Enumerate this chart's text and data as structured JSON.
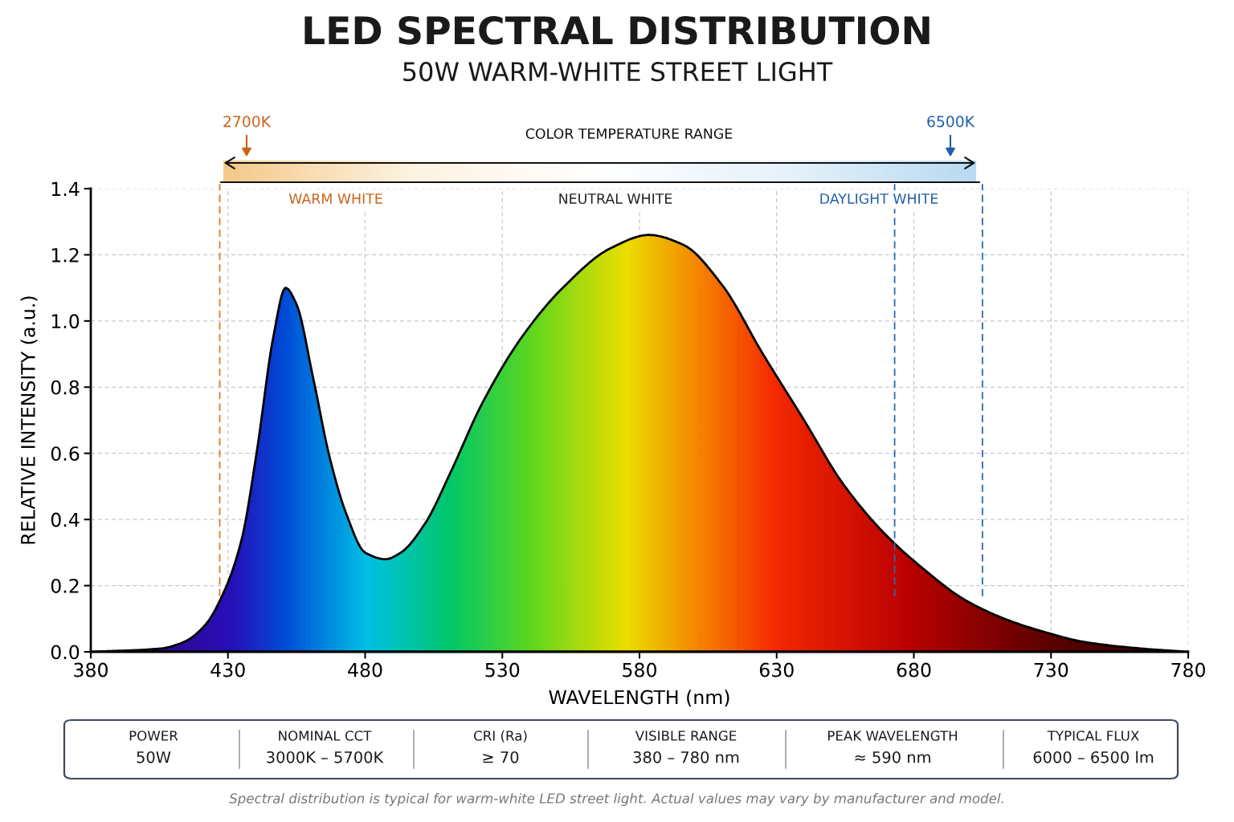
{
  "chart_data": {
    "type": "area",
    "title": "LED SPECTRAL DISTRIBUTION",
    "subtitle": "50W WARM-WHITE STREET LIGHT",
    "xlabel": "WAVELENGTH (nm)",
    "ylabel": "RELATIVE INTENSITY (a.u.)",
    "x": [
      380,
      405.5,
      414,
      421.6,
      429,
      435,
      440.6,
      446.5,
      451,
      455,
      461,
      467,
      473,
      480,
      487.5,
      493,
      502,
      511,
      522.6,
      537,
      552,
      569.5,
      583.5,
      596,
      610,
      625,
      640,
      654,
      669,
      683.6,
      698,
      713,
      727.6,
      742,
      762.7,
      780
    ],
    "series": [
      {
        "color": "#000000",
        "values": [
          0,
          0.01,
          0.03,
          0.08,
          0.19,
          0.34,
          0.61,
          0.95,
          1.1,
          1.05,
          0.83,
          0.59,
          0.42,
          0.3,
          0.28,
          0.3,
          0.39,
          0.54,
          0.75,
          0.95,
          1.1,
          1.22,
          1.26,
          1.23,
          1.11,
          0.9,
          0.7,
          0.51,
          0.36,
          0.25,
          0.16,
          0.1,
          0.06,
          0.03,
          0.01,
          0
        ]
      }
    ],
    "xlim": [
      380,
      780
    ],
    "ylim": [
      0,
      1.4
    ],
    "xticks": [
      380,
      430,
      480,
      530,
      580,
      630,
      680,
      730,
      780
    ],
    "yticks": [
      {
        "value": 0,
        "label": "0.0"
      },
      {
        "value": 0.2,
        "label": "0.2"
      },
      {
        "value": 0.4,
        "label": "0.4"
      },
      {
        "value": 0.6,
        "label": "0.6"
      },
      {
        "value": 0.8,
        "label": "0.8"
      },
      {
        "value": 1.0,
        "label": "1.0"
      },
      {
        "value": 1.2,
        "label": "1.2"
      },
      {
        "value": 1.4,
        "label": "1.4"
      }
    ],
    "grid": true,
    "ref_lines": [
      {
        "axis": "x",
        "value": 427,
        "label": null,
        "color": "#e07b22",
        "line_style": "dashed"
      },
      {
        "axis": "x",
        "value": 673,
        "label": null,
        "color": "#2b6cb0",
        "line_style": "dashed"
      },
      {
        "axis": "x",
        "value": 705,
        "label": null,
        "color": "#2b6cb0",
        "line_style": "dashed"
      }
    ],
    "annotations": [
      "2700K",
      "6500K",
      "COLOR TEMPERATURE RANGE",
      "WARM WHITE",
      "NEUTRAL WHITE",
      "DAYLIGHT WHITE",
      "POWER",
      "50W",
      "NOMINAL CCT",
      "3000K – 5700K",
      "CRI (Ra)",
      "≥ 70",
      "VISIBLE RANGE",
      "380 – 780 nm",
      "PEAK WAVELENGTH",
      "≈ 590 nm",
      "TYPICAL FLUX",
      "6000 – 6500 lm",
      "Spectral distribution is typical for warm-white LED street light. Actual values may vary by manufacturer and model."
    ]
  }
}
